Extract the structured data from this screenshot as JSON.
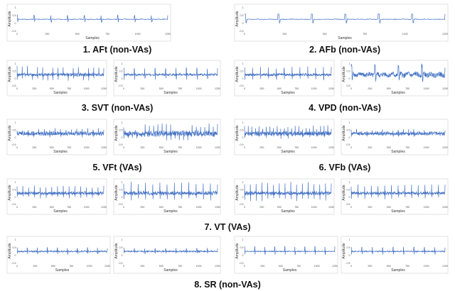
{
  "figure": {
    "captions": [
      "1. AFt (non-VAs)",
      "2. AFb (non-VAs)",
      "3. SVT (non-VAs)",
      "4. VPD (non-VAs)",
      "5. VFt (VAs)",
      "6. VFb (VAs)",
      "7. VT (VAs)",
      "8. SR (non-VAs)"
    ]
  },
  "chart_data": [
    {
      "type": "line",
      "title": "",
      "xlabel": "Samples",
      "ylabel": "Amplitude",
      "xlim": [
        0,
        1250
      ],
      "xticks": [
        0,
        250,
        500,
        750,
        1000,
        1250
      ],
      "yticks": [
        "1",
        "0.5",
        "0",
        "-0.5"
      ],
      "series": [
        {
          "rhythm": "AFt",
          "beats_visible": 9,
          "spike_amplitude": 0.35,
          "noise": 0.03,
          "baseline": 0.12
        }
      ]
    },
    {
      "type": "line",
      "title": "",
      "xlabel": "Samples",
      "ylabel": "Amplitude",
      "xlim": [
        0,
        1250
      ],
      "xticks": [
        0,
        250,
        500,
        750,
        1000,
        1250
      ],
      "yticks": [
        "1",
        "0.5",
        "0",
        "-0.5"
      ],
      "series": [
        {
          "rhythm": "AFb",
          "beats_visible": 6,
          "spike_amplitude": 0.45,
          "noise": 0.03,
          "baseline": 0.15
        }
      ]
    },
    {
      "type": "line",
      "title": "",
      "xlabel": "Samples",
      "ylabel": "Amplitude",
      "xlim": [
        0,
        1250
      ],
      "xticks": [
        0,
        250,
        500,
        750,
        1000,
        1250
      ],
      "yticks": [
        "1",
        "0.5",
        "0",
        "-0.5"
      ],
      "series": [
        {
          "rhythm": "AFb",
          "beats_visible": 6,
          "spike_amplitude": 0.45,
          "noise": 0.03,
          "baseline": 0.15
        }
      ]
    },
    {
      "type": "line",
      "title": "",
      "xlabel": "Samples",
      "ylabel": "Amplitude",
      "xlim": [
        0,
        1250
      ],
      "xticks": [
        0,
        250,
        500,
        750,
        1000,
        1250
      ],
      "yticks": [
        "1",
        "0.5",
        "0",
        "-0.5"
      ],
      "series": [
        {
          "rhythm": "SVT",
          "beats_visible": 17,
          "spike_amplitude": 0.7,
          "noise": 0.12,
          "baseline": 0.5
        }
      ]
    },
    {
      "type": "line",
      "title": "",
      "xlabel": "Samples",
      "ylabel": "Amplitude",
      "xlim": [
        0,
        1250
      ],
      "xticks": [
        0,
        250,
        500,
        750,
        1000,
        1250
      ],
      "yticks": [
        "1",
        "0.5",
        "0",
        "-0.5"
      ],
      "series": [
        {
          "rhythm": "SVT",
          "beats_visible": 9,
          "spike_amplitude": 0.6,
          "noise": 0.08,
          "baseline": 0.5
        }
      ]
    },
    {
      "type": "line",
      "title": "",
      "xlabel": "Samples",
      "ylabel": "Amplitude",
      "xlim": [
        0,
        1250
      ],
      "xticks": [
        0,
        250,
        500,
        750,
        1000,
        1250
      ],
      "yticks": [
        "1",
        "0.5",
        "0",
        "-0.5"
      ],
      "series": [
        {
          "rhythm": "VPD",
          "beats_visible": 11,
          "spike_amplitude": 0.65,
          "noise": 0.1,
          "baseline": 0.5
        }
      ]
    },
    {
      "type": "line",
      "title": "",
      "xlabel": "Samples",
      "ylabel": "Amplitude",
      "xlim": [
        0,
        1250
      ],
      "xticks": [
        0,
        250,
        500,
        750,
        1000,
        1250
      ],
      "yticks": [
        "1",
        "0.5",
        "0",
        "-0.5"
      ],
      "series": [
        {
          "rhythm": "VPD",
          "beats_visible": 4,
          "spike_amplitude": 0.8,
          "noise": 0.22,
          "baseline": 0.5
        }
      ]
    },
    {
      "type": "line",
      "title": "",
      "xlabel": "Samples",
      "ylabel": "Amplitude",
      "xlim": [
        0,
        1250
      ],
      "xticks": [
        0,
        250,
        500,
        750,
        1000,
        1250
      ],
      "yticks": [
        "1",
        "0.5",
        "0",
        "-0.5"
      ],
      "series": [
        {
          "rhythm": "VFt",
          "beats_visible": 16,
          "spike_amplitude": 0.35,
          "noise": 0.16,
          "baseline": 0.5
        }
      ]
    },
    {
      "type": "line",
      "title": "",
      "xlabel": "Samples",
      "ylabel": "Amplitude",
      "xlim": [
        0,
        1250
      ],
      "xticks": [
        0,
        250,
        500,
        750,
        1000,
        1250
      ],
      "yticks": [
        "1",
        "0.5",
        "0",
        "-0.5"
      ],
      "series": [
        {
          "rhythm": "VFt",
          "beats_visible": 22,
          "spike_amplitude": 0.75,
          "noise": 0.22,
          "baseline": 0.5
        }
      ]
    },
    {
      "type": "line",
      "title": "",
      "xlabel": "Samples",
      "ylabel": "Amplitude",
      "xlim": [
        0,
        1250
      ],
      "xticks": [
        0,
        250,
        500,
        750,
        1000,
        1250
      ],
      "yticks": [
        "1",
        "0.5",
        "0",
        "-0.5"
      ],
      "series": [
        {
          "rhythm": "VFb",
          "beats_visible": 24,
          "spike_amplitude": 0.55,
          "noise": 0.18,
          "baseline": 0.5
        }
      ]
    },
    {
      "type": "line",
      "title": "",
      "xlabel": "Samples",
      "ylabel": "Amplitude",
      "xlim": [
        0,
        1250
      ],
      "xticks": [
        0,
        250,
        500,
        750,
        1000,
        1250
      ],
      "yticks": [
        "1",
        "0.5",
        "0",
        "-0.5"
      ],
      "series": [
        {
          "rhythm": "VFb",
          "beats_visible": 18,
          "spike_amplitude": 0.3,
          "noise": 0.14,
          "baseline": 0.5
        }
      ]
    },
    {
      "type": "line",
      "title": "",
      "xlabel": "Samples",
      "ylabel": "Amplitude",
      "xlim": [
        0,
        1250
      ],
      "xticks": [
        0,
        250,
        500,
        750,
        1000,
        1250
      ],
      "yticks": [
        "1",
        "0.5",
        "0",
        "-0.5"
      ],
      "series": [
        {
          "rhythm": "VT",
          "beats_visible": 15,
          "spike_amplitude": 0.6,
          "noise": 0.12,
          "baseline": 0.5
        }
      ]
    },
    {
      "type": "line",
      "title": "",
      "xlabel": "Samples",
      "ylabel": "Amplitude",
      "xlim": [
        0,
        1250
      ],
      "xticks": [
        0,
        250,
        500,
        750,
        1000,
        1250
      ],
      "yticks": [
        "1",
        "0.5",
        "0",
        "-0.5"
      ],
      "series": [
        {
          "rhythm": "VT",
          "beats_visible": 13,
          "spike_amplitude": 0.9,
          "noise": 0.15,
          "baseline": 0.5
        }
      ]
    },
    {
      "type": "line",
      "title": "",
      "xlabel": "Samples",
      "ylabel": "Amplitude",
      "xlim": [
        0,
        1250
      ],
      "xticks": [
        0,
        250,
        500,
        750,
        1000,
        1250
      ],
      "yticks": [
        "1",
        "0.5",
        "0",
        "-0.5"
      ],
      "series": [
        {
          "rhythm": "VT",
          "beats_visible": 15,
          "spike_amplitude": 0.9,
          "noise": 0.14,
          "baseline": 0.5
        }
      ]
    },
    {
      "type": "line",
      "title": "",
      "xlabel": "Samples",
      "ylabel": "Amplitude",
      "xlim": [
        0,
        1250
      ],
      "xticks": [
        0,
        250,
        500,
        750,
        1000,
        1250
      ],
      "yticks": [
        "1",
        "0.5",
        "0",
        "-0.5"
      ],
      "series": [
        {
          "rhythm": "VT",
          "beats_visible": 14,
          "spike_amplitude": 0.7,
          "noise": 0.12,
          "baseline": 0.5
        }
      ]
    },
    {
      "type": "line",
      "title": "",
      "xlabel": "Samples",
      "ylabel": "Amplitude",
      "xlim": [
        0,
        1250
      ],
      "xticks": [
        0,
        250,
        500,
        750,
        1000,
        1250
      ],
      "yticks": [
        "1",
        "0.5",
        "0",
        "-0.5"
      ],
      "series": [
        {
          "rhythm": "SR",
          "beats_visible": 9,
          "spike_amplitude": 0.3,
          "noise": 0.05,
          "baseline": 0.5
        }
      ]
    },
    {
      "type": "line",
      "title": "",
      "xlabel": "Samples",
      "ylabel": "Amplitude",
      "xlim": [
        0,
        1250
      ],
      "xticks": [
        0,
        250,
        500,
        750,
        1000,
        1250
      ],
      "yticks": [
        "1",
        "0.5",
        "0",
        "-0.5"
      ],
      "series": [
        {
          "rhythm": "SR",
          "beats_visible": 9,
          "spike_amplitude": 0.25,
          "noise": 0.05,
          "baseline": 0.5
        }
      ]
    },
    {
      "type": "line",
      "title": "",
      "xlabel": "Samples",
      "ylabel": "Amplitude",
      "xlim": [
        0,
        1250
      ],
      "xticks": [
        0,
        250,
        500,
        750,
        1000,
        1250
      ],
      "yticks": [
        "1",
        "0.5",
        "0",
        "-0.5"
      ],
      "series": [
        {
          "rhythm": "SR",
          "beats_visible": 9,
          "spike_amplitude": 0.4,
          "noise": 0.03,
          "baseline": 0.5
        }
      ]
    },
    {
      "type": "line",
      "title": "",
      "xlabel": "Samples",
      "ylabel": "Amplitude",
      "xlim": [
        0,
        1250
      ],
      "xticks": [
        0,
        250,
        500,
        750,
        1000,
        1250
      ],
      "yticks": [
        "1",
        "0.5",
        "0",
        "-0.5"
      ],
      "series": [
        {
          "rhythm": "SR",
          "beats_visible": 9,
          "spike_amplitude": 0.35,
          "noise": 0.04,
          "baseline": 0.5
        }
      ]
    }
  ],
  "colors": {
    "trace": "#4472c4",
    "frame": "#d0d0d0",
    "text": "#111111"
  }
}
